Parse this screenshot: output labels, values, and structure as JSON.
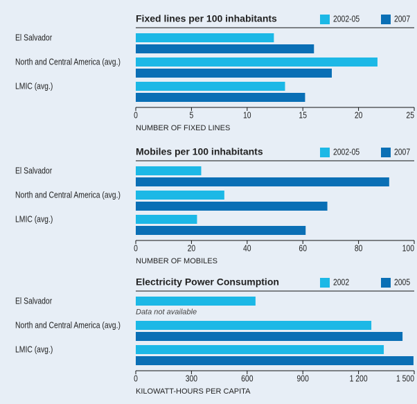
{
  "chart_data": [
    {
      "type": "bar",
      "orientation": "horizontal",
      "title": "Fixed lines per 100 inhabitants",
      "xlabel": "NUMBER OF FIXED LINES",
      "categories": [
        "El Salvador",
        "North and Central America (avg.)",
        "LMIC (avg.)"
      ],
      "series": [
        {
          "name": "2002-05",
          "color": "#1cb8e6",
          "values": [
            12.4,
            21.7,
            13.4
          ]
        },
        {
          "name": "2007",
          "color": "#0a6fb5",
          "values": [
            16.0,
            17.6,
            15.2
          ]
        }
      ],
      "xlim": [
        0,
        25
      ],
      "xticks": [
        0,
        5,
        10,
        15,
        20,
        25
      ],
      "legend": "top-right"
    },
    {
      "type": "bar",
      "orientation": "horizontal",
      "title": "Mobiles per 100 inhabitants",
      "xlabel": "NUMBER OF MOBILES",
      "categories": [
        "El Salvador",
        "North and Central America (avg.)",
        "LMIC (avg.)"
      ],
      "series": [
        {
          "name": "2002-05",
          "color": "#1cb8e6",
          "values": [
            23.5,
            31.8,
            22
          ]
        },
        {
          "name": "2007",
          "color": "#0a6fb5",
          "values": [
            91,
            68.8,
            61
          ]
        }
      ],
      "xlim": [
        0,
        100
      ],
      "xticks": [
        0,
        20,
        40,
        60,
        80,
        100
      ],
      "legend": "top-right"
    },
    {
      "type": "bar",
      "orientation": "horizontal",
      "title": "Electricity Power Consumption",
      "xlabel": "KILOWATT-HOURS PER CAPITA",
      "categories": [
        "El Salvador",
        "North and Central America (avg.)",
        "LMIC (avg.)"
      ],
      "series": [
        {
          "name": "2002",
          "color": "#1cb8e6",
          "values": [
            645,
            1269,
            1336
          ]
        },
        {
          "name": "2005",
          "color": "#0a6fb5",
          "values": [
            null,
            1437,
            1496
          ]
        }
      ],
      "note": "Data not available",
      "xlim": [
        0,
        1500
      ],
      "xticks": [
        0,
        300,
        600,
        900,
        {
          "value": 1200,
          "label": "1 200"
        },
        {
          "value": 1500,
          "label": "1 500"
        }
      ],
      "legend": "top-right"
    }
  ]
}
